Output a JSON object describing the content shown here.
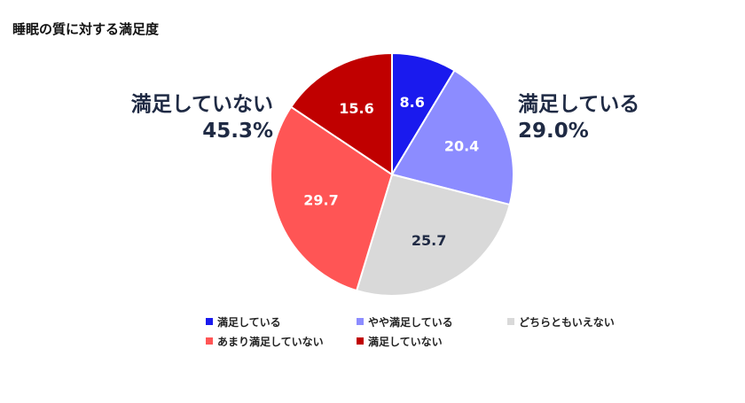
{
  "title": "睡眠の質に対する満足度",
  "callouts": {
    "left": {
      "label": "満足していない",
      "value": "45.3%"
    },
    "right": {
      "label": "満足している",
      "value": "29.0%"
    }
  },
  "chart_data": {
    "type": "pie",
    "title": "睡眠の質に対する満足度",
    "start_angle": "12 o'clock",
    "direction": "clockwise",
    "legend_placement": "bottom",
    "slices": [
      {
        "name": "満足している",
        "value": 8.6,
        "label": "8.6",
        "color": "#1a1aee",
        "label_color": "#ffffff"
      },
      {
        "name": "やや満足している",
        "value": 20.4,
        "label": "20.4",
        "color": "#8c8cff",
        "label_color": "#ffffff"
      },
      {
        "name": "どちらともいえない",
        "value": 25.7,
        "label": "25.7",
        "color": "#d9d9d9",
        "label_color": "#1f2a44"
      },
      {
        "name": "あまり満足していない",
        "value": 29.7,
        "label": "29.7",
        "color": "#ff5555",
        "label_color": "#ffffff"
      },
      {
        "name": "満足していない",
        "value": 15.6,
        "label": "15.6",
        "color": "#c00000",
        "label_color": "#ffffff"
      }
    ]
  }
}
